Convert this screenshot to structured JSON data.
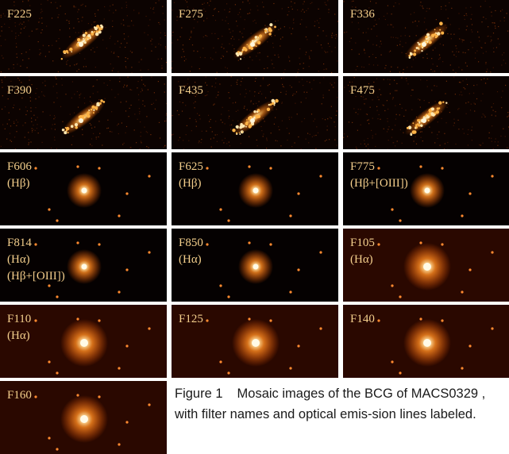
{
  "figure": {
    "panels": [
      {
        "filter": "F225",
        "lines": [],
        "kind": "uv"
      },
      {
        "filter": "F275",
        "lines": [],
        "kind": "uv"
      },
      {
        "filter": "F336",
        "lines": [],
        "kind": "uv"
      },
      {
        "filter": "F390",
        "lines": [],
        "kind": "uv"
      },
      {
        "filter": "F435",
        "lines": [],
        "kind": "uv"
      },
      {
        "filter": "F475",
        "lines": [],
        "kind": "uv"
      },
      {
        "filter": "F606",
        "lines": [
          "(Hβ)"
        ],
        "kind": "opt"
      },
      {
        "filter": "F625",
        "lines": [
          "(Hβ)"
        ],
        "kind": "opt"
      },
      {
        "filter": "F775",
        "lines": [
          "(Hβ+[OIII])"
        ],
        "kind": "opt"
      },
      {
        "filter": "F814",
        "lines": [
          "(Hα)",
          "(Hβ+[OIII])"
        ],
        "kind": "opt"
      },
      {
        "filter": "F850",
        "lines": [
          "(Hα)"
        ],
        "kind": "opt"
      },
      {
        "filter": "F105",
        "lines": [
          "(Hα)"
        ],
        "kind": "ir"
      },
      {
        "filter": "F110",
        "lines": [
          "(Hα)"
        ],
        "kind": "ir"
      },
      {
        "filter": "F125",
        "lines": [],
        "kind": "ir"
      },
      {
        "filter": "F140",
        "lines": [],
        "kind": "ir"
      },
      {
        "filter": "F160",
        "lines": [],
        "kind": "ir"
      }
    ],
    "caption": {
      "number": "Figure 1",
      "text": "Mosaic images of the BCG of MACS0329 , with filter names and optical emis-sion lines labeled."
    }
  }
}
